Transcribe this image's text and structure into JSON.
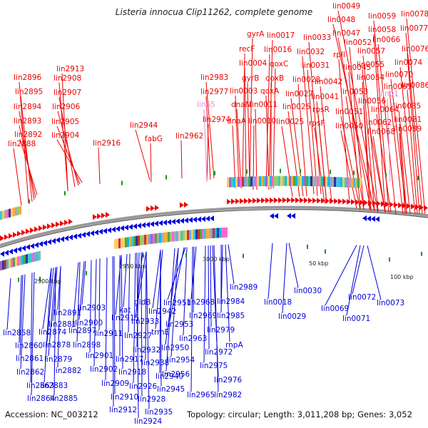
{
  "title": "Listeria innocua Clip11262, complete genome",
  "accession": "Accession: NC_003212",
  "topology": "Topology: circular; Length: 3,011,208 bp; Genes: 3,052",
  "scale_labels": [
    "50 kbp",
    "100 kbp",
    "2900 kbp",
    "2950 kbp",
    "3000 kbp"
  ],
  "colors": {
    "forward": "#ee0000",
    "reverse": "#0000dd",
    "highlight": "#e888d8",
    "backbone": "#888888",
    "marker": "#119911"
  },
  "top_labels": [
    "lin0049",
    "lin0048",
    "lin0078",
    "gyrA",
    "lin0017",
    "lin0059",
    "lin0077",
    "lin0047",
    "lin0058",
    "lin0033",
    "recF",
    "lin0016",
    "lin0066",
    "lin0052",
    "lin0076",
    "rplI",
    "lin0032",
    "lin0057",
    "qoxC",
    "lin0004",
    "lin0074",
    "lin0045",
    "lin0055",
    "lin0031",
    "gyrB",
    "lin0070",
    "qoxB",
    "lin0054",
    "lin2983",
    "lin0042",
    "lin0028",
    "lin0086",
    "lin0065",
    "lin0003",
    "qoxA",
    "lin0053",
    "lin0027",
    "lin2977",
    "lin0041",
    "lin0056",
    "dnaN",
    "lin0011",
    "lin0085",
    "lin0026",
    "lin0064",
    "rpsR",
    "lin0051",
    "lin0062",
    "lin0081",
    "lin2974",
    "dnaA",
    "lin0010",
    "lin0025",
    "rpsF",
    "lin0050",
    "lin0068",
    "lin0089",
    "lin2896",
    "lin2895",
    "lin2894",
    "lin2893",
    "lin2892",
    "lin2888",
    "lin2913",
    "lin2908",
    "lin2907",
    "lin2906",
    "lin2905",
    "lin2904",
    "lin2916",
    "lin2944",
    "fabG",
    "lin2962"
  ],
  "pink_labels": [
    "lin65",
    "lin01"
  ],
  "bottom_labels": [
    "lin2989",
    "lin2984",
    "lin2968",
    "lin2951",
    "lin2985",
    "lin2969",
    "lin2953",
    "lin2979",
    "lin2963",
    "lin2950",
    "lin2972",
    "rnpA",
    "lin2954",
    "lin2975",
    "lin2956",
    "lin2976",
    "lin2965",
    "lin2982",
    "lin2942",
    "gldB",
    "lin2933",
    "trmE",
    "lin2932",
    "lin2938",
    "lin2940",
    "lin2945",
    "lin2928",
    "lin2926",
    "lin2935",
    "lin2924",
    "kat",
    "lin2915",
    "lin2927",
    "lin2917",
    "lin2918",
    "lin2910",
    "lin2909",
    "lin2912",
    "lin2903",
    "lin2900",
    "lin2911",
    "lin2901",
    "lin2902",
    "lin2897",
    "lin2898",
    "lin2891",
    "lin2881",
    "lin2874",
    "lin2878",
    "lin2879",
    "lin2882",
    "lin2883",
    "lin2885",
    "lin2858",
    "lin2860",
    "lin2861",
    "lin2862",
    "lin2863",
    "lin2864",
    "lin0018",
    "lin0029",
    "lin0030",
    "lin0069",
    "lin0072",
    "lin0071",
    "lin0073"
  ]
}
